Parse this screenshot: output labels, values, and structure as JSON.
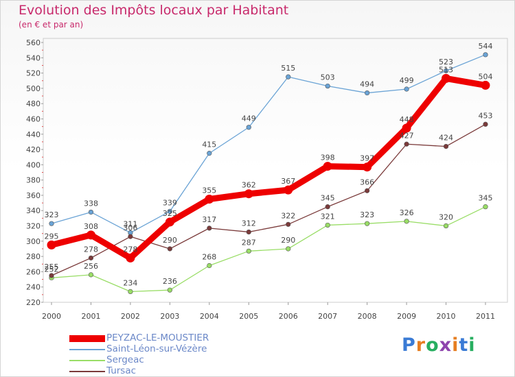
{
  "chart_data": {
    "type": "line",
    "title": "Evolution des Impôts locaux par Habitant",
    "subtitle": "(en € et par an)",
    "xlabel": "",
    "ylabel": "",
    "x": [
      "2000",
      "2001",
      "2002",
      "2003",
      "2004",
      "2005",
      "2006",
      "2007",
      "2008",
      "2009",
      "2010",
      "2011"
    ],
    "ylim": [
      220,
      560
    ],
    "yticks": [
      220,
      240,
      260,
      280,
      300,
      320,
      340,
      360,
      380,
      400,
      420,
      440,
      460,
      480,
      500,
      520,
      540,
      560
    ],
    "grid": false,
    "legend_position": "bottom-left",
    "series": [
      {
        "name": "PEYZAC-LE-MOUSTIER",
        "color": "#ee0000",
        "values": [
          295,
          308,
          278,
          325,
          355,
          362,
          367,
          398,
          397,
          448,
          513,
          504
        ]
      },
      {
        "name": "Saint-Léon-sur-Vézère",
        "color": "#6aa3d5",
        "values": [
          323,
          338,
          311,
          339,
          415,
          449,
          515,
          503,
          494,
          499,
          523,
          544
        ]
      },
      {
        "name": "Sergeac",
        "color": "#99dd66",
        "values": [
          252,
          256,
          234,
          236,
          268,
          287,
          290,
          321,
          323,
          326,
          320,
          345
        ]
      },
      {
        "name": "Tursac",
        "color": "#7a3a3a",
        "values": [
          255,
          278,
          306,
          290,
          317,
          312,
          322,
          345,
          366,
          427,
          424,
          453
        ]
      }
    ]
  },
  "logo": {
    "letters": [
      "P",
      "r",
      "o",
      "x",
      "i",
      "t",
      "i"
    ],
    "colors": [
      "#3a7bd5",
      "#e67e22",
      "#27ae60",
      "#8e44ad",
      "#e67e22",
      "#3a7bd5",
      "#27ae60"
    ]
  }
}
